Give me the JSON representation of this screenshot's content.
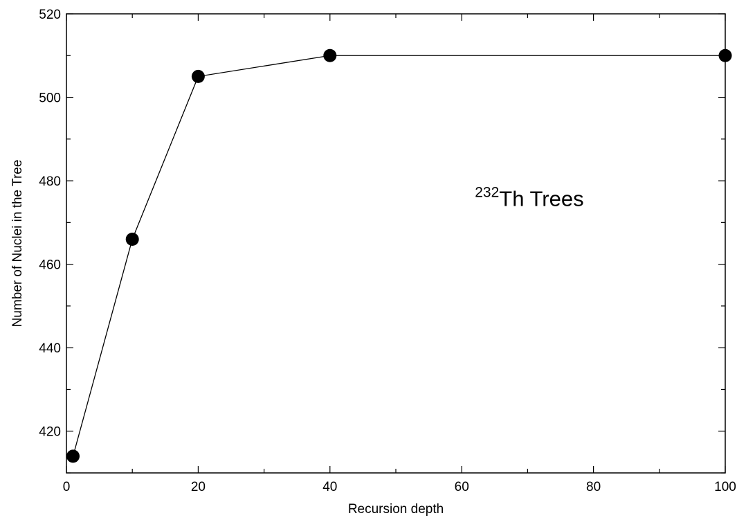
{
  "chart_data": {
    "type": "line",
    "title": "",
    "xlabel": "Recursion depth",
    "ylabel": "Number of Nuclei in the Tree",
    "xlim": [
      0,
      100
    ],
    "ylim": [
      410,
      520
    ],
    "xticks": [
      0,
      20,
      40,
      60,
      80,
      100
    ],
    "yticks": [
      420,
      440,
      460,
      480,
      500,
      520
    ],
    "x_minor_step": 10,
    "y_minor_step": 10,
    "grid": false,
    "legend": "none",
    "series": [
      {
        "x": [
          1,
          10,
          20,
          40,
          100
        ],
        "y": [
          414,
          466,
          505,
          510,
          510
        ],
        "color": "#000000",
        "marker": "filled-circle"
      }
    ],
    "annotation": {
      "superscript": "232",
      "text": "Th Trees",
      "x": 62,
      "y": 474
    }
  }
}
